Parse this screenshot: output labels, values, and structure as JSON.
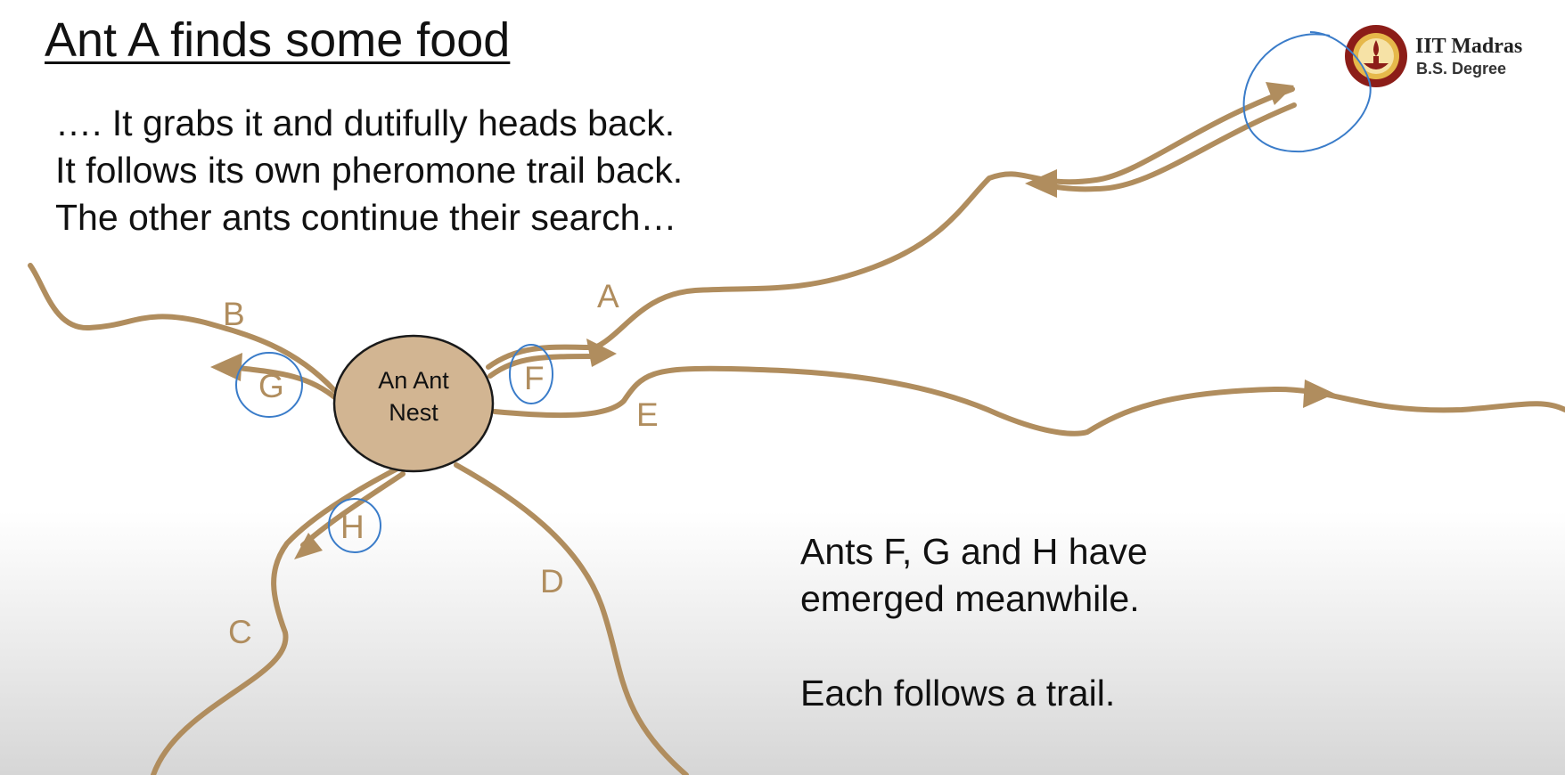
{
  "slide": {
    "title": "Ant A finds some food",
    "intro_lines": [
      "…. It grabs it and dutifully heads back.",
      "It follows its own pheromone trail back.",
      "The other ants continue their search…"
    ],
    "note_lines": [
      "Ants F, G and H have",
      "emerged meanwhile.",
      "Each follows a trail."
    ]
  },
  "branding": {
    "name": "IIT Madras",
    "subtitle": "B.S. Degree",
    "logo_icon": "iit-madras-seal-icon"
  },
  "diagram": {
    "nest_label_line1": "An Ant",
    "nest_label_line2": "Nest",
    "trail_labels": {
      "a": "A",
      "b": "B",
      "c": "C",
      "d": "D",
      "e": "E"
    },
    "ant_labels": {
      "f": "F",
      "g": "G",
      "h": "H"
    },
    "colors": {
      "trail": "#b08d5e",
      "nest_fill": "#d2b592",
      "nest_stroke": "#1a1a1a",
      "annotation": "#3a7cc9"
    }
  }
}
